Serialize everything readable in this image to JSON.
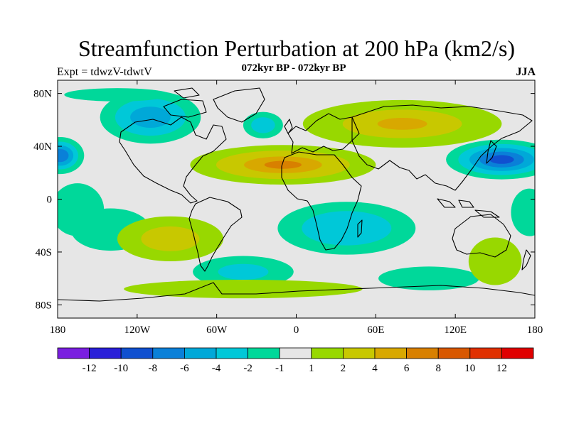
{
  "chart_data": {
    "type": "heatmap",
    "title": "Streamfunction Perturbation at 200 hPa (km2/s)",
    "subtitle": "072kyr BP - 072kyr BP",
    "left_label": "Expt = tdwzV-tdwtV",
    "right_label": "JJA",
    "x_axis": {
      "range": [
        -180,
        180
      ],
      "ticks": [
        {
          "value": -180,
          "label": "180"
        },
        {
          "value": -120,
          "label": "120W"
        },
        {
          "value": -60,
          "label": "60W"
        },
        {
          "value": 0,
          "label": "0"
        },
        {
          "value": 60,
          "label": "60E"
        },
        {
          "value": 120,
          "label": "120E"
        },
        {
          "value": 180,
          "label": "180"
        }
      ]
    },
    "y_axis": {
      "range": [
        -90,
        90
      ],
      "ticks": [
        {
          "value": 80,
          "label": "80N"
        },
        {
          "value": 40,
          "label": "40N"
        },
        {
          "value": 0,
          "label": "0"
        },
        {
          "value": -40,
          "label": "40S"
        },
        {
          "value": -80,
          "label": "80S"
        }
      ]
    },
    "colorbar": {
      "levels": [
        "-12",
        "-10",
        "-8",
        "-6",
        "-4",
        "-2",
        "-1",
        "1",
        "2",
        "4",
        "6",
        "8",
        "10",
        "12"
      ],
      "colors": [
        "#7a1fe0",
        "#2a1fd8",
        "#1050d0",
        "#0a80d8",
        "#00a8d8",
        "#00c8d8",
        "#00d89a",
        "#e6e6e6",
        "#98d800",
        "#c8c800",
        "#d8a800",
        "#d88000",
        "#d85800",
        "#e03000",
        "#e00000"
      ]
    },
    "regions": [
      {
        "name": "pacific-north-low",
        "lon": -178,
        "lat": 33,
        "rx": 18,
        "ry": 14,
        "levels": [
          {
            "c": "#00d89a",
            "s": 1.0
          },
          {
            "c": "#00c8d8",
            "s": 0.75
          },
          {
            "c": "#00a8d8",
            "s": 0.55
          },
          {
            "c": "#0a80d8",
            "s": 0.35
          }
        ]
      },
      {
        "name": "nw-pacific-low",
        "lon": 155,
        "lat": 30,
        "rx": 42,
        "ry": 15,
        "levels": [
          {
            "c": "#00d89a",
            "s": 1.0
          },
          {
            "c": "#00c8d8",
            "s": 0.78
          },
          {
            "c": "#00a8d8",
            "s": 0.58
          },
          {
            "c": "#0a80d8",
            "s": 0.4
          },
          {
            "c": "#1050d0",
            "s": 0.22
          }
        ]
      },
      {
        "name": "north-america-low",
        "lon": -110,
        "lat": 62,
        "rx": 38,
        "ry": 20,
        "levels": [
          {
            "c": "#00d89a",
            "s": 1.0
          },
          {
            "c": "#00c8d8",
            "s": 0.7
          },
          {
            "c": "#00a8d8",
            "s": 0.4
          }
        ]
      },
      {
        "name": "arctic-low",
        "lon": -135,
        "lat": 79,
        "rx": 40,
        "ry": 5,
        "levels": [
          {
            "c": "#00d89a",
            "s": 1.0
          }
        ]
      },
      {
        "name": "north-atlantic-low",
        "lon": -25,
        "lat": 56,
        "rx": 15,
        "ry": 10,
        "levels": [
          {
            "c": "#00d89a",
            "s": 1.0
          },
          {
            "c": "#00c8d8",
            "s": 0.6
          }
        ]
      },
      {
        "name": "africa-low",
        "lon": 38,
        "lat": -22,
        "rx": 52,
        "ry": 20,
        "levels": [
          {
            "c": "#00d89a",
            "s": 1.0
          },
          {
            "c": "#00c8d8",
            "s": 0.65
          }
        ]
      },
      {
        "name": "south-atlantic-low",
        "lon": -40,
        "lat": -55,
        "rx": 38,
        "ry": 12,
        "levels": [
          {
            "c": "#00d89a",
            "s": 1.0
          },
          {
            "c": "#00c8d8",
            "s": 0.5
          }
        ]
      },
      {
        "name": "indian-ocean-low",
        "lon": 100,
        "lat": -60,
        "rx": 38,
        "ry": 9,
        "levels": [
          {
            "c": "#00d89a",
            "s": 1.0
          }
        ]
      },
      {
        "name": "east-pacific-low",
        "lon": -165,
        "lat": -8,
        "rx": 20,
        "ry": 20,
        "levels": [
          {
            "c": "#00d89a",
            "s": 1.0
          }
        ]
      },
      {
        "name": "west-pacific-low",
        "lon": 176,
        "lat": -10,
        "rx": 14,
        "ry": 18,
        "levels": [
          {
            "c": "#00d89a",
            "s": 1.0
          }
        ]
      },
      {
        "name": "central-pacific-low",
        "lon": -140,
        "lat": -23,
        "rx": 30,
        "ry": 16,
        "levels": [
          {
            "c": "#00d89a",
            "s": 1.0
          }
        ]
      },
      {
        "name": "atlantic-africa-high",
        "lon": -10,
        "lat": 26,
        "rx": 70,
        "ry": 15,
        "levels": [
          {
            "c": "#98d800",
            "s": 1.0
          },
          {
            "c": "#c8c800",
            "s": 0.72
          },
          {
            "c": "#d8a800",
            "s": 0.42
          },
          {
            "c": "#d88000",
            "s": 0.2
          }
        ]
      },
      {
        "name": "eurasia-high",
        "lon": 80,
        "lat": 57,
        "rx": 75,
        "ry": 18,
        "levels": [
          {
            "c": "#98d800",
            "s": 1.0
          },
          {
            "c": "#c8c800",
            "s": 0.6
          },
          {
            "c": "#d8a800",
            "s": 0.25
          }
        ]
      },
      {
        "name": "south-pacific-high",
        "lon": -95,
        "lat": -30,
        "rx": 40,
        "ry": 17,
        "levels": [
          {
            "c": "#98d800",
            "s": 1.0
          },
          {
            "c": "#c8c800",
            "s": 0.55
          }
        ]
      },
      {
        "name": "australia-south-high",
        "lon": 150,
        "lat": -47,
        "rx": 20,
        "ry": 18,
        "levels": [
          {
            "c": "#98d800",
            "s": 1.0
          }
        ]
      },
      {
        "name": "southern-ocean-high",
        "lon": -40,
        "lat": -68,
        "rx": 90,
        "ry": 7,
        "levels": [
          {
            "c": "#98d800",
            "s": 1.0
          }
        ]
      }
    ]
  }
}
